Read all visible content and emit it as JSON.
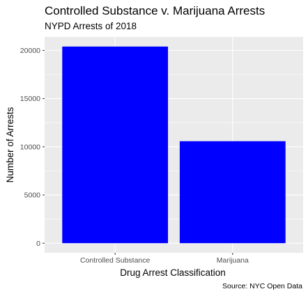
{
  "chart_data": {
    "type": "bar",
    "title": "Controlled Substance v. Marijuana Arrests",
    "subtitle": "NYPD Arrests of 2018",
    "xlabel": "Drug Arrest Classification",
    "ylabel": "Number of Arrests",
    "caption": "Source: NYC Open Data",
    "categories": [
      "Controlled Substance",
      "Marijuana"
    ],
    "values": [
      20400,
      10580
    ],
    "ylim": [
      -1000,
      21400
    ],
    "yticks": [
      0,
      5000,
      10000,
      15000,
      20000
    ],
    "ytick_labels": [
      "0",
      "5000",
      "10000",
      "15000",
      "20000"
    ],
    "grid": true,
    "legend": "none",
    "colors": {
      "bar": "#0000ff",
      "panel": "#ebebeb",
      "grid": "#ffffff",
      "tick_text": "#4d4d4d",
      "tick_mark": "#333333"
    }
  }
}
